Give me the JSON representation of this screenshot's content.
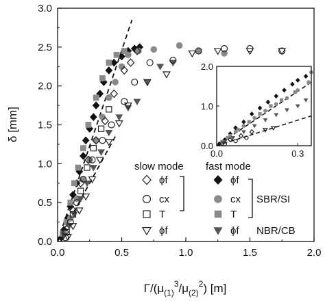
{
  "chart_data": {
    "type": "scatter",
    "ylabel": "δ [mm]",
    "xlabel": {
      "base": "Γ/(μ",
      "sub1": "(1)",
      "sup1": "3",
      "mid": "/μ",
      "sub2": "(2)",
      "sup2": "2",
      "tail": ") [m]"
    },
    "xlim": [
      0,
      2.0
    ],
    "ylim": [
      0,
      3.0
    ],
    "xticks": [
      "0.0",
      "0.5",
      "1.0",
      "1.5",
      "2.0"
    ],
    "yticks": [
      "0.0",
      "0.5",
      "1.0",
      "1.5",
      "2.0",
      "2.5",
      "3.0"
    ],
    "legend": {
      "slow_title": "slow mode",
      "fast_title": "fast mode",
      "rows": [
        {
          "slow_marker": "diamond",
          "fast_marker": "diamond",
          "label": "ϕf"
        },
        {
          "slow_marker": "circle",
          "fast_marker": "circle",
          "label": "cx"
        },
        {
          "slow_marker": "square",
          "fast_marker": "square",
          "label": "T"
        },
        {
          "slow_marker": "triangle-down",
          "fast_marker": "triangle-down",
          "label": "ϕf"
        }
      ],
      "group1": "SBR/SI",
      "group2": "NBR/CB"
    },
    "series": [
      {
        "fill": "#111111",
        "marker": "diamond",
        "points": [
          [
            0.03,
            0.05
          ],
          [
            0.05,
            0.15
          ],
          [
            0.08,
            0.3
          ],
          [
            0.1,
            0.45
          ],
          [
            0.12,
            0.6
          ],
          [
            0.15,
            0.75
          ],
          [
            0.17,
            0.9
          ],
          [
            0.2,
            1.1
          ],
          [
            0.22,
            1.3
          ],
          [
            0.25,
            1.45
          ],
          [
            0.28,
            1.6
          ],
          [
            0.3,
            1.75
          ],
          [
            0.33,
            1.9
          ],
          [
            0.36,
            2.05
          ],
          [
            0.4,
            2.2
          ],
          [
            0.44,
            2.3
          ],
          [
            0.5,
            2.38
          ],
          [
            0.55,
            2.45
          ],
          [
            0.6,
            2.48
          ],
          [
            0.64,
            2.5
          ]
        ]
      },
      {
        "fill": "#8a8a8a",
        "marker": "circle",
        "points": [
          [
            0.05,
            0.1
          ],
          [
            0.1,
            0.3
          ],
          [
            0.15,
            0.55
          ],
          [
            0.2,
            0.8
          ],
          [
            0.25,
            1.05
          ],
          [
            0.3,
            1.3
          ],
          [
            0.35,
            1.6
          ],
          [
            0.4,
            1.85
          ],
          [
            0.45,
            2.05
          ],
          [
            0.5,
            2.25
          ],
          [
            0.55,
            2.4
          ],
          [
            0.63,
            2.45
          ],
          [
            0.75,
            2.47
          ],
          [
            0.95,
            2.52
          ],
          [
            1.1,
            2.45
          ],
          [
            1.3,
            2.42
          ]
        ]
      },
      {
        "fill": "#8a8a8a",
        "marker": "square",
        "points": [
          [
            0.04,
            0.1
          ],
          [
            0.07,
            0.25
          ],
          [
            0.1,
            0.5
          ],
          [
            0.13,
            0.75
          ],
          [
            0.16,
            0.95
          ],
          [
            0.2,
            1.2
          ],
          [
            0.24,
            1.5
          ],
          [
            0.3,
            1.85
          ],
          [
            0.35,
            2.1
          ],
          [
            0.4,
            2.3
          ],
          [
            0.46,
            2.4
          ],
          [
            0.52,
            2.45
          ]
        ]
      },
      {
        "fill": "#555555",
        "marker": "triangle-down",
        "points": [
          [
            0.05,
            0.08
          ],
          [
            0.09,
            0.2
          ],
          [
            0.13,
            0.35
          ],
          [
            0.18,
            0.55
          ],
          [
            0.23,
            0.75
          ],
          [
            0.28,
            0.95
          ],
          [
            0.34,
            1.15
          ],
          [
            0.4,
            1.4
          ],
          [
            0.48,
            1.6
          ],
          [
            0.55,
            1.72
          ],
          [
            0.62,
            1.8
          ],
          [
            0.7,
            2.05
          ],
          [
            0.8,
            2.25
          ],
          [
            0.9,
            2.3
          ]
        ]
      },
      {
        "fill": "none",
        "marker": "diamond",
        "points": [
          [
            0.06,
            0.12
          ],
          [
            0.12,
            0.4
          ],
          [
            0.18,
            0.75
          ],
          [
            0.24,
            1.05
          ],
          [
            0.3,
            1.3
          ],
          [
            0.37,
            1.55
          ],
          [
            0.44,
            1.9
          ],
          [
            0.52,
            2.2
          ],
          [
            0.57,
            2.3
          ],
          [
            0.62,
            2.45
          ]
        ]
      },
      {
        "fill": "none",
        "marker": "circle",
        "points": [
          [
            0.06,
            0.05
          ],
          [
            0.1,
            0.25
          ],
          [
            0.15,
            0.5
          ],
          [
            0.2,
            0.8
          ],
          [
            0.27,
            1.05
          ],
          [
            0.35,
            1.3
          ],
          [
            0.42,
            1.5
          ],
          [
            0.52,
            1.8
          ],
          [
            0.6,
            2.05
          ],
          [
            0.72,
            2.3
          ],
          [
            0.9,
            2.33
          ],
          [
            1.1,
            2.45
          ],
          [
            1.3,
            2.48
          ],
          [
            1.5,
            2.48
          ],
          [
            1.75,
            2.45
          ]
        ]
      },
      {
        "fill": "none",
        "marker": "square",
        "points": [
          [
            0.07,
            0.12
          ],
          [
            0.12,
            0.35
          ],
          [
            0.18,
            0.65
          ],
          [
            0.23,
            0.95
          ],
          [
            0.28,
            1.2
          ],
          [
            0.34,
            1.45
          ],
          [
            0.4,
            1.7
          ]
        ]
      },
      {
        "fill": "none",
        "marker": "triangle-down",
        "points": [
          [
            0.08,
            0.06
          ],
          [
            0.12,
            0.2
          ],
          [
            0.17,
            0.4
          ],
          [
            0.22,
            0.58
          ],
          [
            0.27,
            0.8
          ],
          [
            0.33,
            1.05
          ],
          [
            0.4,
            1.28
          ],
          [
            0.48,
            1.52
          ],
          [
            0.55,
            1.75
          ],
          [
            0.7,
            2.05
          ],
          [
            0.85,
            2.15
          ],
          [
            1.05,
            2.42
          ],
          [
            1.25,
            2.45
          ],
          [
            1.5,
            2.45
          ],
          [
            1.75,
            2.45
          ]
        ]
      }
    ],
    "guide_lines": [
      {
        "from": [
          0.0,
          0.0
        ],
        "to": [
          0.58,
          2.85
        ]
      },
      {
        "from": [
          0.0,
          0.0
        ],
        "to": [
          0.45,
          1.35
        ]
      }
    ],
    "inset": {
      "xlim": [
        0,
        0.35
      ],
      "ylim": [
        0,
        2.0
      ],
      "xticks": [
        "0.0",
        "0.3"
      ],
      "yticks": [
        "0.0",
        "1.0",
        "2.0"
      ],
      "guide_lines": [
        {
          "from": [
            0.0,
            0.0
          ],
          "to": [
            0.35,
            1.6
          ]
        },
        {
          "from": [
            0.0,
            0.0
          ],
          "to": [
            0.35,
            0.75
          ]
        }
      ],
      "points": [
        {
          "fill": "#111111",
          "marker": "diamond",
          "xy": [
            [
              0.01,
              0.05
            ],
            [
              0.03,
              0.15
            ],
            [
              0.05,
              0.3
            ],
            [
              0.07,
              0.45
            ],
            [
              0.1,
              0.6
            ],
            [
              0.13,
              0.8
            ],
            [
              0.16,
              0.95
            ],
            [
              0.19,
              1.1
            ],
            [
              0.22,
              1.25
            ],
            [
              0.25,
              1.4
            ],
            [
              0.28,
              1.55
            ],
            [
              0.3,
              1.65
            ],
            [
              0.33,
              1.75
            ]
          ]
        },
        {
          "fill": "#8a8a8a",
          "marker": "circle",
          "xy": [
            [
              0.02,
              0.08
            ],
            [
              0.04,
              0.2
            ],
            [
              0.07,
              0.35
            ],
            [
              0.1,
              0.5
            ],
            [
              0.14,
              0.7
            ],
            [
              0.18,
              0.88
            ],
            [
              0.22,
              1.05
            ],
            [
              0.26,
              1.2
            ],
            [
              0.3,
              1.4
            ],
            [
              0.34,
              1.6
            ],
            [
              0.35,
              1.85
            ]
          ]
        },
        {
          "fill": "#8a8a8a",
          "marker": "square",
          "xy": [
            [
              0.02,
              0.1
            ],
            [
              0.05,
              0.25
            ],
            [
              0.08,
              0.4
            ],
            [
              0.12,
              0.6
            ],
            [
              0.16,
              0.8
            ],
            [
              0.2,
              1.0
            ],
            [
              0.24,
              1.15
            ],
            [
              0.29,
              1.35
            ]
          ]
        },
        {
          "fill": "#555555",
          "marker": "triangle-down",
          "xy": [
            [
              0.03,
              0.1
            ],
            [
              0.06,
              0.2
            ],
            [
              0.1,
              0.35
            ],
            [
              0.14,
              0.5
            ],
            [
              0.18,
              0.65
            ],
            [
              0.22,
              0.78
            ],
            [
              0.26,
              0.9
            ],
            [
              0.3,
              1.0
            ],
            [
              0.33,
              1.15
            ]
          ]
        },
        {
          "fill": "none",
          "marker": "diamond",
          "xy": [
            [
              0.02,
              0.05
            ],
            [
              0.05,
              0.15
            ],
            [
              0.09,
              0.25
            ],
            [
              0.13,
              0.35
            ]
          ]
        },
        {
          "fill": "none",
          "marker": "circle",
          "xy": [
            [
              0.03,
              0.04
            ],
            [
              0.07,
              0.12
            ],
            [
              0.11,
              0.2
            ]
          ]
        },
        {
          "fill": "none",
          "marker": "triangle-down",
          "xy": [
            [
              0.18,
              0.4
            ],
            [
              0.21,
              0.45
            ]
          ]
        }
      ]
    }
  }
}
